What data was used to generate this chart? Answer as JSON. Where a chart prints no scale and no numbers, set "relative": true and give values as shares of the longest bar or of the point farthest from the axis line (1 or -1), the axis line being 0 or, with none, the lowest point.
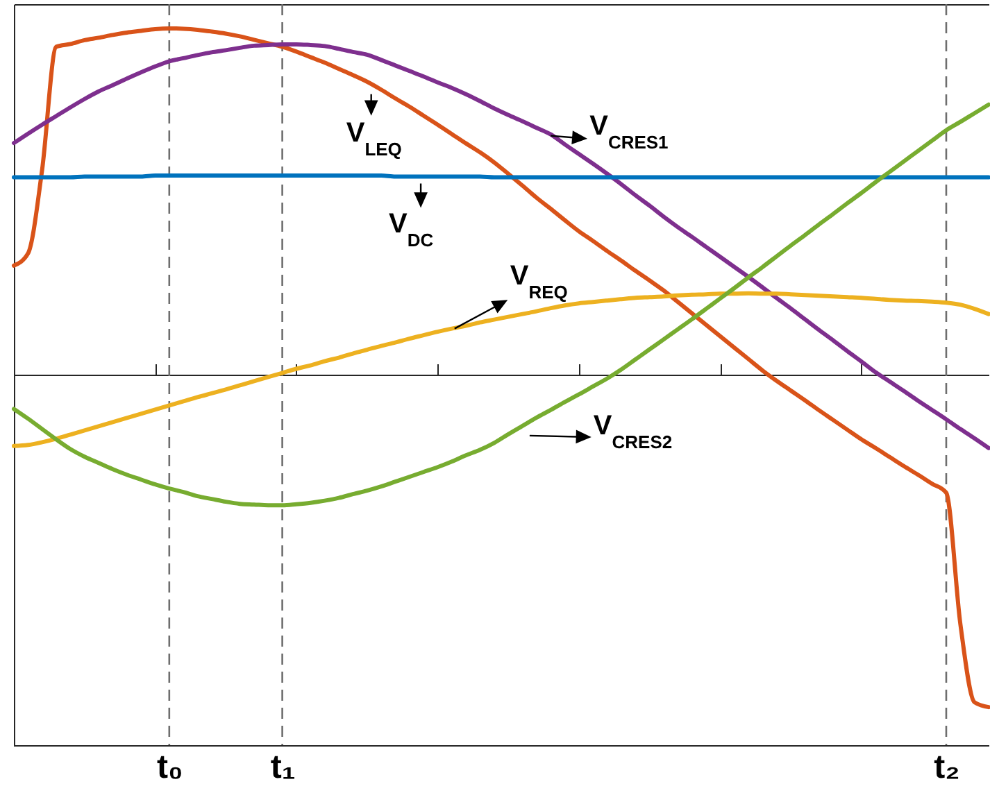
{
  "chart_data": {
    "type": "line",
    "relative": true,
    "categories": [
      null,
      null,
      null,
      null,
      null,
      null,
      null,
      null,
      null,
      null,
      null,
      "t₀",
      null,
      null,
      null,
      null,
      null,
      null,
      null,
      "t₁",
      null,
      null,
      null,
      null,
      null,
      null,
      null,
      null,
      null,
      null,
      null,
      null,
      null,
      null,
      null,
      null,
      null,
      null,
      null,
      null,
      null,
      null,
      null,
      null,
      null,
      null,
      null,
      null,
      null,
      null,
      null,
      null,
      null,
      null,
      null,
      null,
      null,
      null,
      null,
      null,
      null,
      null,
      null,
      null,
      null,
      null,
      "t₂",
      null,
      null,
      null
    ],
    "series": [
      {
        "name": "V$_{LEQ}$",
        "color": "#d95319",
        "values": [
          0.315,
          0.35,
          0.592,
          0.947,
          0.955,
          0.966,
          0.973,
          0.981,
          0.988,
          0.993,
          0.998,
          1.0,
          0.999,
          0.996,
          0.991,
          0.985,
          0.977,
          0.967,
          0.957,
          0.947,
          0.933,
          0.917,
          0.901,
          0.883,
          0.865,
          0.846,
          0.823,
          0.798,
          0.774,
          0.748,
          0.722,
          0.695,
          0.668,
          0.642,
          0.613,
          0.58,
          0.546,
          0.511,
          0.479,
          0.446,
          0.414,
          0.386,
          0.357,
          0.329,
          0.3,
          0.272,
          0.243,
          0.21,
          0.177,
          0.144,
          0.111,
          0.078,
          0.045,
          0.012,
          -0.018,
          -0.046,
          -0.074,
          -0.103,
          -0.131,
          -0.159,
          -0.187,
          -0.212,
          -0.238,
          -0.264,
          -0.289,
          -0.315,
          -0.341,
          -0.72,
          -0.946,
          -0.96
        ]
      },
      {
        "name": "V$_{CRES1}$",
        "color": "#7e2f8e",
        "values": [
          0.669,
          0.696,
          0.722,
          0.747,
          0.772,
          0.796,
          0.818,
          0.836,
          0.855,
          0.873,
          0.89,
          0.905,
          0.914,
          0.923,
          0.931,
          0.937,
          0.944,
          0.95,
          0.952,
          0.954,
          0.954,
          0.952,
          0.949,
          0.941,
          0.932,
          0.924,
          0.909,
          0.893,
          0.877,
          0.861,
          0.844,
          0.828,
          0.81,
          0.79,
          0.769,
          0.75,
          0.732,
          0.713,
          0.694,
          0.665,
          0.637,
          0.609,
          0.58,
          0.55,
          0.518,
          0.488,
          0.456,
          0.426,
          0.398,
          0.369,
          0.34,
          0.311,
          0.282,
          0.252,
          0.221,
          0.191,
          0.16,
          0.129,
          0.099,
          0.068,
          0.038,
          0.007,
          -0.02,
          -0.047,
          -0.075,
          -0.102,
          -0.129,
          -0.157,
          -0.184,
          -0.212
        ]
      },
      {
        "name": "V$_{DC}$",
        "color": "#0072bd",
        "values": [
          0.57,
          0.57,
          0.57,
          0.57,
          0.57,
          0.572,
          0.572,
          0.572,
          0.572,
          0.572,
          0.575,
          0.575,
          0.575,
          0.575,
          0.575,
          0.575,
          0.575,
          0.575,
          0.575,
          0.575,
          0.575,
          0.575,
          0.575,
          0.575,
          0.575,
          0.575,
          0.575,
          0.572,
          0.572,
          0.572,
          0.572,
          0.572,
          0.572,
          0.572,
          0.57,
          0.57,
          0.57,
          0.57,
          0.57,
          0.57,
          0.57,
          0.57,
          0.57,
          0.57,
          0.57,
          0.57,
          0.57,
          0.57,
          0.57,
          0.57,
          0.57,
          0.57,
          0.57,
          0.57,
          0.57,
          0.57,
          0.57,
          0.57,
          0.57,
          0.57,
          0.57,
          0.57,
          0.57,
          0.57,
          0.57,
          0.57,
          0.57,
          0.57,
          0.57,
          0.57
        ]
      },
      {
        "name": "V$_{REQ}$",
        "color": "#edb120",
        "values": [
          -0.206,
          -0.203,
          -0.195,
          -0.185,
          -0.173,
          -0.161,
          -0.149,
          -0.137,
          -0.125,
          -0.113,
          -0.101,
          -0.089,
          -0.077,
          -0.065,
          -0.054,
          -0.043,
          -0.031,
          -0.019,
          -0.007,
          0.005,
          0.017,
          0.027,
          0.039,
          0.049,
          0.061,
          0.072,
          0.083,
          0.093,
          0.104,
          0.114,
          0.124,
          0.133,
          0.141,
          0.151,
          0.159,
          0.167,
          0.175,
          0.183,
          0.192,
          0.2,
          0.206,
          0.21,
          0.214,
          0.218,
          0.222,
          0.224,
          0.226,
          0.229,
          0.231,
          0.232,
          0.234,
          0.234,
          0.235,
          0.234,
          0.234,
          0.232,
          0.23,
          0.228,
          0.226,
          0.224,
          0.222,
          0.219,
          0.216,
          0.214,
          0.213,
          0.211,
          0.208,
          0.202,
          0.19,
          0.175
        ]
      },
      {
        "name": "V$_{CRES2}$",
        "color": "#77ac30",
        "values": [
          -0.099,
          -0.127,
          -0.157,
          -0.187,
          -0.215,
          -0.237,
          -0.255,
          -0.273,
          -0.289,
          -0.303,
          -0.317,
          -0.329,
          -0.339,
          -0.351,
          -0.359,
          -0.367,
          -0.373,
          -0.375,
          -0.377,
          -0.377,
          -0.374,
          -0.37,
          -0.364,
          -0.356,
          -0.345,
          -0.335,
          -0.323,
          -0.309,
          -0.295,
          -0.281,
          -0.267,
          -0.251,
          -0.233,
          -0.217,
          -0.197,
          -0.172,
          -0.148,
          -0.124,
          -0.102,
          -0.079,
          -0.057,
          -0.034,
          -0.011,
          0.015,
          0.044,
          0.073,
          0.102,
          0.131,
          0.16,
          0.19,
          0.22,
          0.25,
          0.281,
          0.311,
          0.342,
          0.373,
          0.403,
          0.434,
          0.464,
          0.495,
          0.525,
          0.556,
          0.586,
          0.616,
          0.646,
          0.676,
          0.706,
          0.73,
          0.755,
          0.78
        ]
      }
    ],
    "ref_lines": [
      {
        "axis": "x",
        "value": "t₀",
        "color": "#6e6e6e",
        "line_style": "dashed"
      },
      {
        "axis": "x",
        "value": "t₁",
        "color": "#6e6e6e",
        "line_style": "dashed"
      },
      {
        "axis": "x",
        "value": "t₂",
        "color": "#6e6e6e",
        "line_style": "dashed"
      }
    ]
  }
}
